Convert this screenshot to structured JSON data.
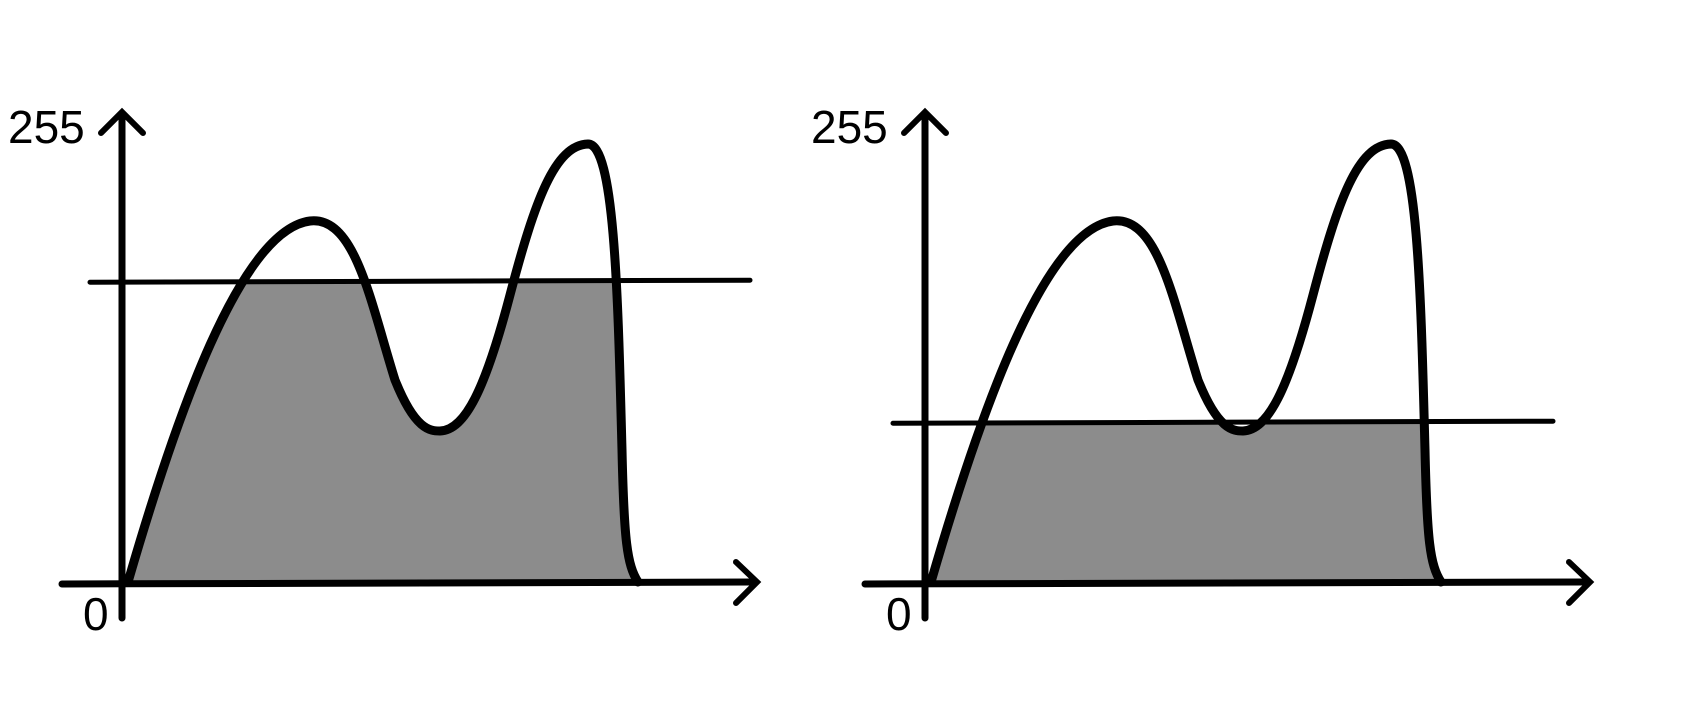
{
  "panels": [
    {
      "y_max_label": "255",
      "origin_label": "0",
      "threshold_level": 0.64
    },
    {
      "y_max_label": "255",
      "origin_label": "0",
      "threshold_level": 0.34
    }
  ],
  "colors": {
    "fill": "#8c8c8c",
    "stroke": "#000000",
    "background": "#ffffff"
  }
}
